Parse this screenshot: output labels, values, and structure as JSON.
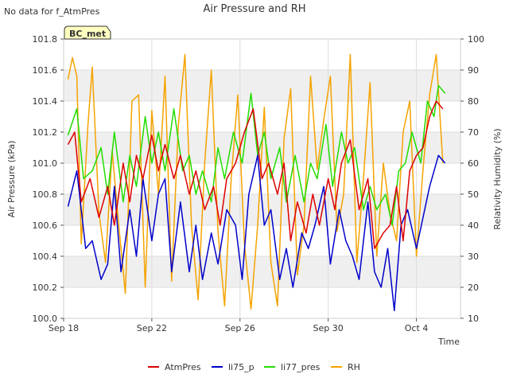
{
  "notice": "No data for f_AtmPres",
  "badge": "BC_met",
  "chart_data": {
    "type": "line",
    "title": "Air Pressure and RH",
    "xlabel": "Time",
    "ylabel": "Air Pressure (kPa)",
    "ylabel_right": "Relativity Humidity (%)",
    "ylim": [
      100.0,
      101.8
    ],
    "ylim_right": [
      10,
      100
    ],
    "y_ticks": [
      "100.0",
      "100.2",
      "100.4",
      "100.6",
      "100.8",
      "101.0",
      "101.2",
      "101.4",
      "101.6",
      "101.8"
    ],
    "y_ticks_right": [
      "10",
      "20",
      "30",
      "40",
      "50",
      "60",
      "70",
      "80",
      "90",
      "100"
    ],
    "x_ticks": [
      "Sep 18",
      "Sep 22",
      "Sep 26",
      "Sep 30",
      "Oct 4"
    ],
    "x_tick_days": [
      0,
      4,
      8,
      12,
      16
    ],
    "xlim_days": [
      0,
      18
    ],
    "grid": true,
    "legend_position": "bottom",
    "colors": {
      "AtmPres": "#dd0000",
      "li75_p": "#0000cc",
      "li77_pres": "#22dd00",
      "RH": "#f5a300",
      "band": "#efefef"
    },
    "series": [
      {
        "name": "AtmPres",
        "axis": "left",
        "color": "#dd0000",
        "x": [
          0.2,
          0.5,
          0.8,
          1.2,
          1.6,
          2.0,
          2.3,
          2.7,
          3.0,
          3.3,
          3.6,
          4.0,
          4.3,
          4.6,
          5.0,
          5.3,
          5.7,
          6.0,
          6.4,
          6.8,
          7.1,
          7.4,
          7.8,
          8.2,
          8.6,
          9.0,
          9.3,
          9.7,
          10.0,
          10.3,
          10.6,
          11.0,
          11.3,
          11.6,
          12.0,
          12.3,
          12.6,
          13.0,
          13.4,
          13.8,
          14.1,
          14.5,
          14.8,
          15.1,
          15.4,
          15.7,
          16.0,
          16.3,
          16.6,
          16.9,
          17.2
        ],
        "y": [
          101.12,
          101.2,
          100.75,
          100.9,
          100.65,
          100.85,
          100.6,
          101.0,
          100.75,
          101.05,
          100.9,
          101.18,
          100.95,
          101.12,
          100.9,
          101.05,
          100.8,
          100.95,
          100.7,
          100.85,
          100.6,
          100.9,
          101.0,
          101.2,
          101.35,
          100.9,
          101.0,
          100.8,
          101.0,
          100.5,
          100.75,
          100.55,
          100.8,
          100.6,
          100.9,
          100.7,
          101.0,
          101.15,
          100.7,
          100.9,
          100.45,
          100.55,
          100.6,
          100.85,
          100.5,
          100.95,
          101.05,
          101.1,
          101.3,
          101.4,
          101.35
        ]
      },
      {
        "name": "li75_p",
        "axis": "left",
        "color": "#0000cc",
        "x": [
          0.2,
          0.6,
          1.0,
          1.3,
          1.7,
          2.0,
          2.3,
          2.6,
          3.0,
          3.3,
          3.6,
          4.0,
          4.3,
          4.6,
          4.9,
          5.3,
          5.7,
          6.0,
          6.3,
          6.7,
          7.0,
          7.4,
          7.8,
          8.1,
          8.4,
          8.8,
          9.1,
          9.4,
          9.8,
          10.1,
          10.4,
          10.8,
          11.1,
          11.4,
          11.8,
          12.1,
          12.5,
          12.8,
          13.1,
          13.4,
          13.8,
          14.1,
          14.4,
          14.7,
          15.0,
          15.3,
          15.6,
          16.0,
          16.3,
          16.6,
          17.0,
          17.3
        ],
        "y": [
          100.72,
          100.95,
          100.45,
          100.5,
          100.25,
          100.35,
          100.85,
          100.3,
          100.7,
          100.4,
          100.9,
          100.5,
          100.8,
          100.9,
          100.3,
          100.75,
          100.3,
          100.6,
          100.25,
          100.55,
          100.35,
          100.7,
          100.6,
          100.25,
          100.8,
          101.05,
          100.6,
          100.7,
          100.25,
          100.45,
          100.2,
          100.55,
          100.45,
          100.6,
          100.85,
          100.35,
          100.7,
          100.5,
          100.4,
          100.25,
          100.75,
          100.3,
          100.2,
          100.45,
          100.05,
          100.6,
          100.7,
          100.45,
          100.65,
          100.85,
          101.05,
          101.0
        ]
      },
      {
        "name": "li77_pres",
        "axis": "left",
        "color": "#22dd00",
        "x": [
          0.2,
          0.6,
          0.9,
          1.3,
          1.7,
          2.0,
          2.3,
          2.7,
          3.0,
          3.3,
          3.7,
          4.0,
          4.3,
          4.6,
          5.0,
          5.4,
          5.7,
          6.0,
          6.3,
          6.7,
          7.0,
          7.3,
          7.7,
          8.1,
          8.5,
          8.8,
          9.1,
          9.4,
          9.8,
          10.1,
          10.5,
          10.9,
          11.2,
          11.5,
          11.9,
          12.2,
          12.6,
          12.9,
          13.2,
          13.6,
          13.9,
          14.2,
          14.6,
          14.9,
          15.2,
          15.5,
          15.8,
          16.2,
          16.5,
          16.8,
          17.0,
          17.3
        ],
        "y": [
          101.18,
          101.35,
          100.9,
          100.95,
          101.1,
          100.8,
          101.2,
          100.75,
          101.05,
          100.85,
          101.3,
          101.0,
          101.2,
          100.95,
          101.35,
          100.95,
          101.05,
          100.8,
          100.95,
          100.75,
          101.1,
          100.9,
          101.2,
          101.0,
          101.45,
          101.05,
          101.2,
          100.9,
          101.1,
          100.75,
          101.05,
          100.75,
          101.0,
          100.9,
          101.25,
          100.85,
          101.2,
          101.0,
          101.1,
          100.7,
          100.85,
          100.7,
          100.8,
          100.6,
          100.95,
          101.0,
          101.2,
          101.0,
          101.4,
          101.3,
          101.5,
          101.45
        ]
      },
      {
        "name": "RH",
        "axis": "right",
        "color": "#f5a300",
        "x": [
          0.2,
          0.4,
          0.6,
          0.8,
          1.1,
          1.3,
          1.6,
          1.9,
          2.2,
          2.5,
          2.8,
          3.1,
          3.4,
          3.7,
          4.0,
          4.3,
          4.6,
          4.9,
          5.2,
          5.5,
          5.8,
          6.1,
          6.4,
          6.7,
          7.0,
          7.3,
          7.6,
          7.9,
          8.2,
          8.5,
          8.8,
          9.1,
          9.4,
          9.7,
          10.0,
          10.3,
          10.6,
          10.9,
          11.2,
          11.5,
          11.8,
          12.1,
          12.4,
          12.7,
          13.0,
          13.3,
          13.6,
          13.9,
          14.2,
          14.5,
          14.8,
          15.1,
          15.4,
          15.7,
          16.0,
          16.3,
          16.6,
          16.9,
          17.2
        ],
        "y": [
          87,
          94,
          88,
          34,
          72,
          91,
          44,
          28,
          64,
          40,
          18,
          80,
          82,
          20,
          77,
          50,
          88,
          22,
          72,
          95,
          40,
          16,
          60,
          90,
          38,
          14,
          55,
          82,
          34,
          13,
          40,
          78,
          28,
          14,
          68,
          84,
          24,
          40,
          88,
          58,
          74,
          88,
          38,
          50,
          95,
          28,
          55,
          86,
          30,
          60,
          44,
          35,
          70,
          80,
          30,
          58,
          82,
          95,
          60
        ]
      }
    ]
  },
  "legend": [
    {
      "label": "AtmPres",
      "color": "#dd0000"
    },
    {
      "label": "li75_p",
      "color": "#0000cc"
    },
    {
      "label": "li77_pres",
      "color": "#22dd00"
    },
    {
      "label": "RH",
      "color": "#f5a300"
    }
  ]
}
